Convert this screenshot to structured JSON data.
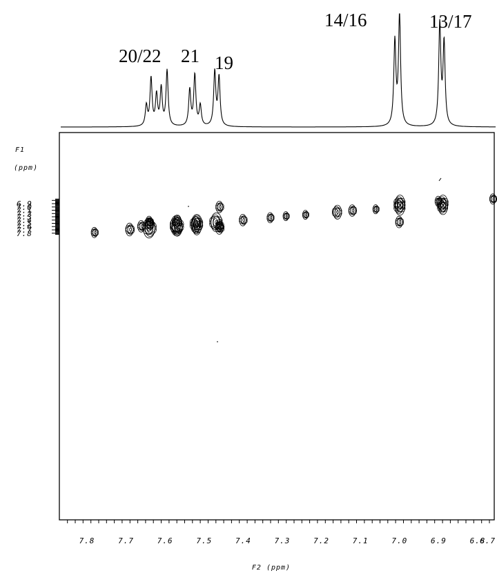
{
  "chart_data": {
    "type": "heatmap",
    "subtype": "2D COSY NMR contour plot with 1D projection",
    "x_axis": {
      "label": "F2 (ppm)",
      "range": [
        7.85,
        6.7
      ],
      "reversed": true,
      "ticks": [
        "7.8",
        "7.7",
        "7.6",
        "7.5",
        "7.4",
        "7.3",
        "7.2",
        "7.1",
        "7.0",
        "6.9",
        "6.8",
        "6.7"
      ]
    },
    "y_axis": {
      "label_line1": "F1",
      "label_line2": "(ppm)",
      "range": [
        6.75,
        7.85
      ],
      "ticks": [
        "6.9",
        "7.0",
        "7.1",
        "7.2",
        "7.3",
        "7.4",
        "7.5",
        "7.6",
        "7.7",
        "7.8"
      ]
    },
    "peak_labels": [
      "20/22",
      "21",
      "19",
      "14/16",
      "13/17"
    ],
    "projection_peaks": [
      {
        "ppm": 7.648,
        "height": 0.18
      },
      {
        "ppm": 7.636,
        "height": 0.42
      },
      {
        "ppm": 7.622,
        "height": 0.27
      },
      {
        "ppm": 7.61,
        "height": 0.33
      },
      {
        "ppm": 7.595,
        "height": 0.49
      },
      {
        "ppm": 7.537,
        "height": 0.32
      },
      {
        "ppm": 7.524,
        "height": 0.45
      },
      {
        "ppm": 7.51,
        "height": 0.18
      },
      {
        "ppm": 7.473,
        "height": 0.48
      },
      {
        "ppm": 7.462,
        "height": 0.43
      },
      {
        "ppm": 7.012,
        "height": 0.74
      },
      {
        "ppm": 7.0,
        "height": 0.98
      },
      {
        "ppm": 6.897,
        "height": 0.9
      },
      {
        "ppm": 6.886,
        "height": 0.73
      }
    ],
    "diagonal_peaks": [
      {
        "f2": 7.78,
        "f1": 7.78,
        "size": 0.5
      },
      {
        "f2": 7.69,
        "f1": 7.69,
        "size": 0.7
      },
      {
        "f2": 7.64,
        "f1": 7.64,
        "size": 1.3
      },
      {
        "f2": 7.57,
        "f1": 7.57,
        "size": 1.3
      },
      {
        "f2": 7.52,
        "f1": 7.52,
        "size": 1.2
      },
      {
        "f2": 7.47,
        "f1": 7.47,
        "size": 1.2
      },
      {
        "f2": 7.4,
        "f1": 7.4,
        "size": 0.6
      },
      {
        "f2": 7.33,
        "f1": 7.33,
        "size": 0.5
      },
      {
        "f2": 7.29,
        "f1": 7.28,
        "size": 0.4
      },
      {
        "f2": 7.24,
        "f1": 7.24,
        "size": 0.4
      },
      {
        "f2": 7.16,
        "f1": 7.16,
        "size": 0.8
      },
      {
        "f2": 7.12,
        "f1": 7.11,
        "size": 0.6
      },
      {
        "f2": 7.06,
        "f1": 7.07,
        "size": 0.4
      },
      {
        "f2": 7.0,
        "f1": 7.0,
        "size": 1.0
      },
      {
        "f2": 6.89,
        "f1": 6.89,
        "size": 1.0
      },
      {
        "f2": 6.76,
        "f1": 6.76,
        "size": 0.5
      }
    ],
    "cross_peaks": [
      {
        "f2": 7.46,
        "f1": 7.0,
        "size": 0.6
      },
      {
        "f2": 7.0,
        "f1": 7.46,
        "size": 0.6
      },
      {
        "f2": 7.0,
        "f1": 6.89,
        "size": 1.0
      },
      {
        "f2": 6.89,
        "f1": 7.0,
        "size": 0.9
      },
      {
        "f2": 7.64,
        "f1": 7.46,
        "size": 0.6
      },
      {
        "f2": 7.64,
        "f1": 7.54,
        "size": 0.7
      },
      {
        "f2": 7.57,
        "f1": 7.46,
        "size": 0.8
      },
      {
        "f2": 7.57,
        "f1": 7.64,
        "size": 1.0
      },
      {
        "f2": 7.52,
        "f1": 7.64,
        "size": 0.8
      },
      {
        "f2": 7.52,
        "f1": 7.47,
        "size": 0.8
      },
      {
        "f2": 7.46,
        "f1": 7.57,
        "size": 0.6
      },
      {
        "f2": 7.46,
        "f1": 7.64,
        "size": 0.7
      },
      {
        "f2": 7.66,
        "f1": 7.59,
        "size": 0.6
      },
      {
        "f2": 6.9,
        "f1": 6.83,
        "size": 0.5
      }
    ],
    "grid": false
  }
}
